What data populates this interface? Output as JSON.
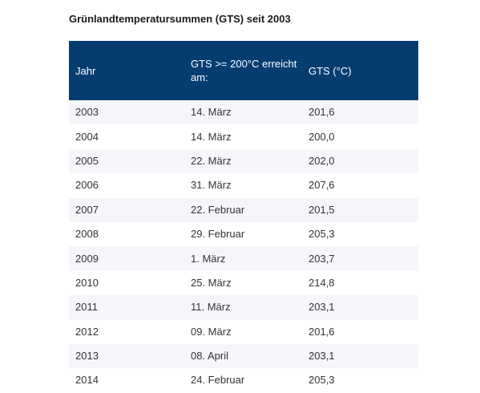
{
  "title": "Grünlandtemperatursummen (GTS) seit 2003",
  "table": {
    "headers": [
      "Jahr",
      "GTS >= 200°C erreicht am:",
      "GTS (°C)"
    ],
    "rows": [
      [
        "2003",
        "14. März",
        "201,6"
      ],
      [
        "2004",
        "14. März",
        "200,0"
      ],
      [
        "2005",
        "22. März",
        "202,0"
      ],
      [
        "2006",
        "31. März",
        "207,6"
      ],
      [
        "2007",
        "22. Februar",
        "201,5"
      ],
      [
        "2008",
        "29. Februar",
        "205,3"
      ],
      [
        "2009",
        "1. März",
        "203,7"
      ],
      [
        "2010",
        "25. März",
        "214,8"
      ],
      [
        "2011",
        "11. März",
        "203,1"
      ],
      [
        "2012",
        "09. März",
        "201,6"
      ],
      [
        "2013",
        "08. April",
        "203,1"
      ],
      [
        "2014",
        "24. Februar",
        "205,3"
      ]
    ]
  },
  "colors": {
    "header_bg": "#053d71",
    "header_text": "#ffffff",
    "row_alt_bg": "#f4f6fa"
  }
}
